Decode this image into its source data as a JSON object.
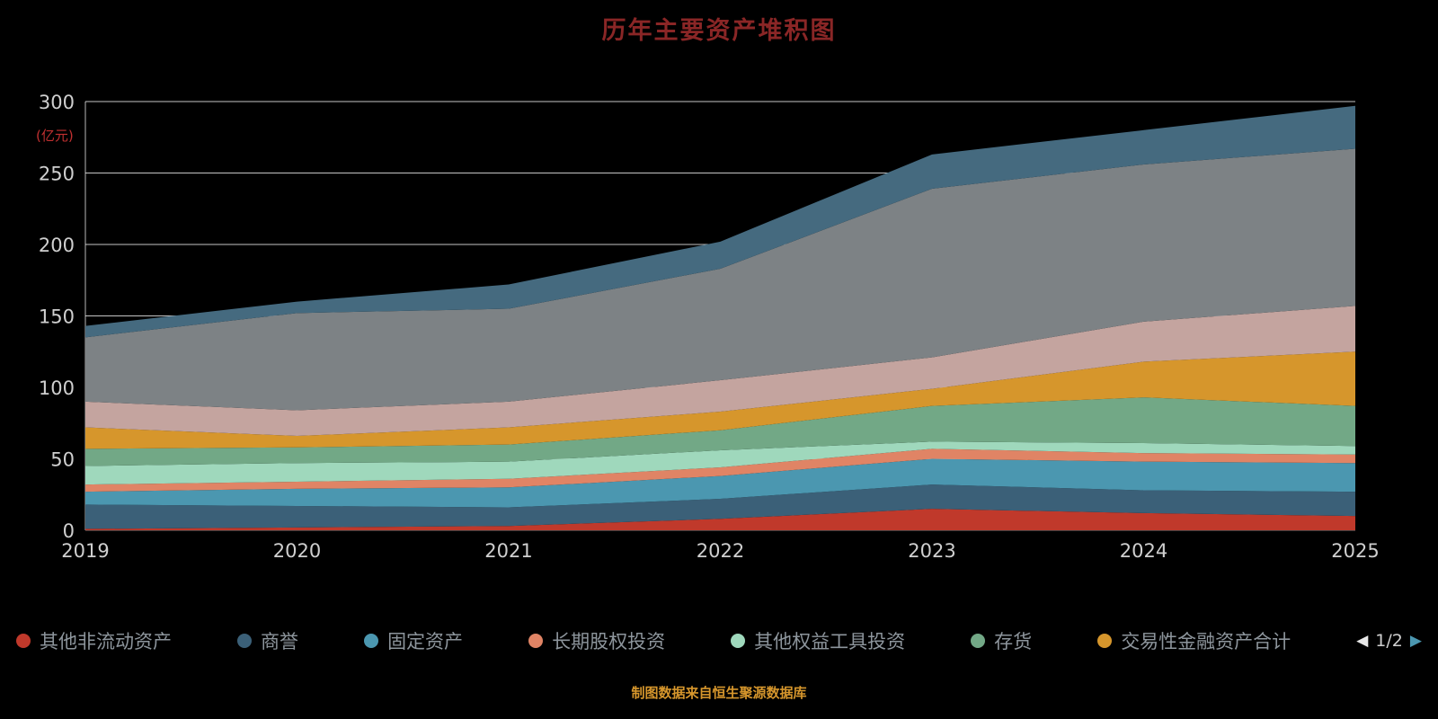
{
  "caption": "制图数据来自恒生聚源数据库",
  "legend": {
    "page": "1/2"
  },
  "chart_data": {
    "type": "area",
    "stacked": true,
    "title": "历年主要资产堆积图",
    "ylabel": "(亿元)",
    "xlabel": "",
    "x": [
      2019,
      2020,
      2021,
      2022,
      2023,
      2024,
      2025
    ],
    "ylim": [
      0,
      300
    ],
    "yticks": [
      0,
      50,
      100,
      150,
      200,
      250,
      300
    ],
    "grid": true,
    "legend_position": "bottom",
    "series": [
      {
        "name": "其他非流动资产",
        "color": "#c0392b",
        "in_legend": true,
        "values": [
          1,
          2,
          3,
          8,
          15,
          12,
          10
        ]
      },
      {
        "name": "商誉",
        "color": "#3b6078",
        "in_legend": true,
        "values": [
          17,
          15,
          13,
          14,
          17,
          16,
          17
        ]
      },
      {
        "name": "固定资产",
        "color": "#4b97b0",
        "in_legend": true,
        "values": [
          9,
          12,
          14,
          16,
          18,
          20,
          20
        ]
      },
      {
        "name": "长期股权投资",
        "color": "#e08465",
        "in_legend": true,
        "values": [
          5,
          5,
          6,
          6,
          7,
          6,
          6
        ]
      },
      {
        "name": "其他权益工具投资",
        "color": "#9fd8bc",
        "in_legend": true,
        "values": [
          13,
          13,
          12,
          12,
          5,
          7,
          6
        ]
      },
      {
        "name": "存货",
        "color": "#72a886",
        "in_legend": true,
        "values": [
          12,
          11,
          12,
          14,
          25,
          32,
          28
        ]
      },
      {
        "name": "交易性金融资产合计",
        "color": "#d6962c",
        "in_legend": true,
        "values": [
          15,
          8,
          12,
          13,
          12,
          25,
          38
        ]
      },
      {
        "name": "series-8",
        "color": "#c4a49f",
        "in_legend": false,
        "values": [
          18,
          18,
          18,
          22,
          22,
          28,
          32
        ]
      },
      {
        "name": "series-9",
        "color": "#7d8285",
        "in_legend": false,
        "values": [
          45,
          68,
          65,
          78,
          118,
          110,
          110
        ]
      },
      {
        "name": "series-10",
        "color": "#456a7f",
        "in_legend": false,
        "values": [
          8,
          8,
          17,
          19,
          24,
          24,
          30
        ]
      }
    ]
  }
}
